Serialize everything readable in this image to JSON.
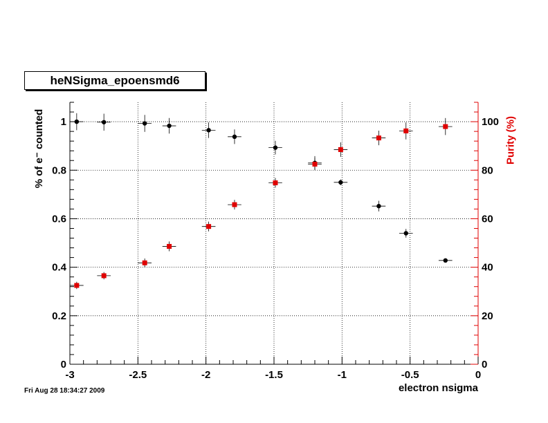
{
  "title": "heNSigma_epoensmd6",
  "timestamp": "Fri Aug 28 18:34:27 2009",
  "chart_data": {
    "type": "scatter",
    "xlabel": "electron nsigma",
    "ylabel_left": "% of e⁻ counted",
    "ylabel_right": "Purity (%)",
    "xlim": [
      -3,
      0
    ],
    "ylim_left": [
      0,
      1.08
    ],
    "ylim_right": [
      0,
      108
    ],
    "x_ticks": [
      "-3",
      "-2.5",
      "-2",
      "-1.5",
      "-1",
      "-0.5",
      "0"
    ],
    "y_left_ticks": [
      "0",
      "0.2",
      "0.4",
      "0.6",
      "0.8",
      "1"
    ],
    "y_right_ticks": [
      "0",
      "20",
      "40",
      "60",
      "80",
      "100"
    ],
    "grid": true,
    "colors": {
      "efficiency": "#000000",
      "purity": "#e00000"
    },
    "series": [
      {
        "axis": "left",
        "marker": "circle",
        "x": [
          -2.95,
          -2.75,
          -2.45,
          -2.27,
          -1.98,
          -1.79,
          -1.49,
          -1.2,
          -1.01,
          -0.73,
          -0.53,
          -0.24
        ],
        "y": [
          1.0,
          0.998,
          0.993,
          0.983,
          0.965,
          0.938,
          0.893,
          0.83,
          0.75,
          0.652,
          0.54,
          0.428
        ],
        "yerr": [
          0.035,
          0.035,
          0.035,
          0.032,
          0.032,
          0.03,
          0.028,
          0.028,
          0.012,
          0.022,
          0.018,
          0.008
        ]
      },
      {
        "axis": "right",
        "marker": "square",
        "x": [
          -2.95,
          -2.75,
          -2.45,
          -2.27,
          -1.98,
          -1.79,
          -1.49,
          -1.2,
          -1.01,
          -0.73,
          -0.53,
          -0.24
        ],
        "y": [
          32.5,
          36.5,
          41.8,
          48.6,
          56.8,
          65.8,
          74.8,
          82.5,
          88.5,
          93.3,
          96.2,
          98.0
        ],
        "yerr": [
          1.5,
          1.5,
          1.8,
          2.0,
          2.0,
          2.0,
          2.0,
          2.5,
          3.0,
          3.0,
          3.5,
          3.5
        ]
      }
    ]
  }
}
